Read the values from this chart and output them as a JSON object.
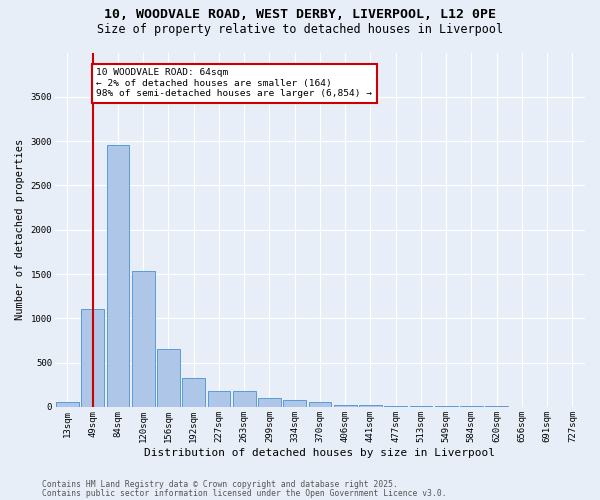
{
  "title_line1": "10, WOODVALE ROAD, WEST DERBY, LIVERPOOL, L12 0PE",
  "title_line2": "Size of property relative to detached houses in Liverpool",
  "xlabel": "Distribution of detached houses by size in Liverpool",
  "ylabel": "Number of detached properties",
  "bar_labels": [
    "13sqm",
    "49sqm",
    "84sqm",
    "120sqm",
    "156sqm",
    "192sqm",
    "227sqm",
    "263sqm",
    "299sqm",
    "334sqm",
    "370sqm",
    "406sqm",
    "441sqm",
    "477sqm",
    "513sqm",
    "549sqm",
    "584sqm",
    "620sqm",
    "656sqm",
    "691sqm",
    "727sqm"
  ],
  "bar_values": [
    55,
    1110,
    2960,
    1530,
    650,
    330,
    185,
    185,
    95,
    80,
    55,
    20,
    20,
    10,
    5,
    5,
    5,
    5,
    0,
    0,
    0
  ],
  "bar_color": "#aec6e8",
  "bar_edge_color": "#5b9bd5",
  "background_color": "#e8eef7",
  "grid_color": "#ffffff",
  "vline_x": 1,
  "vline_color": "#cc0000",
  "annotation_text": "10 WOODVALE ROAD: 64sqm\n← 2% of detached houses are smaller (164)\n98% of semi-detached houses are larger (6,854) →",
  "annotation_box_color": "#ffffff",
  "annotation_box_edge": "#cc0000",
  "ylim": [
    0,
    4000
  ],
  "yticks": [
    0,
    500,
    1000,
    1500,
    2000,
    2500,
    3000,
    3500
  ],
  "ytick_labels": [
    "0",
    "500",
    "1000",
    "1500",
    "2000",
    "2500",
    "3000",
    "3500"
  ],
  "footer_line1": "Contains HM Land Registry data © Crown copyright and database right 2025.",
  "footer_line2": "Contains public sector information licensed under the Open Government Licence v3.0.",
  "title_fontsize": 9.5,
  "subtitle_fontsize": 8.5,
  "xlabel_fontsize": 8,
  "ylabel_fontsize": 7.5,
  "tick_fontsize": 6.5,
  "annotation_fontsize": 6.8,
  "footer_fontsize": 5.8
}
